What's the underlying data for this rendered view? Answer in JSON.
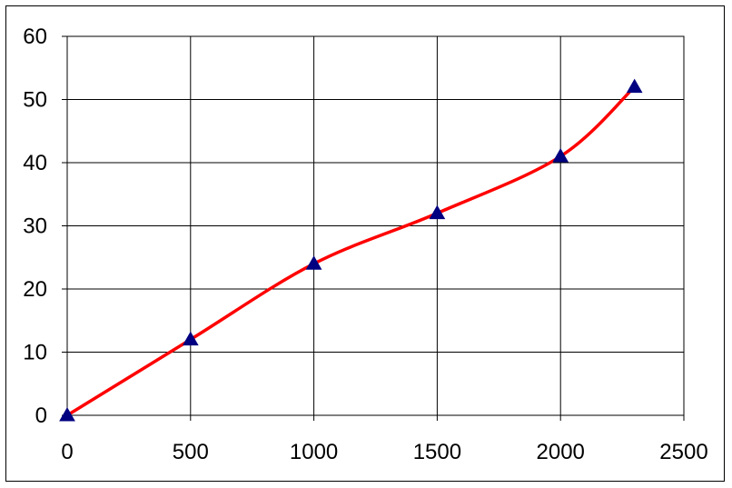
{
  "chart_data": {
    "type": "line",
    "title": "",
    "xlabel": "",
    "ylabel": "",
    "xlim": [
      0,
      2500
    ],
    "ylim": [
      0,
      60
    ],
    "x_ticks": [
      0,
      500,
      1000,
      1500,
      2000,
      2500
    ],
    "y_ticks": [
      0,
      10,
      20,
      30,
      40,
      50,
      60
    ],
    "grid": true,
    "legend": "none",
    "series": [
      {
        "line_color": "#ff0000",
        "marker_color": "#000080",
        "marker": "triangle",
        "x": [
          0,
          500,
          1000,
          1500,
          2000,
          2300
        ],
        "y": [
          0,
          12,
          24,
          32,
          41,
          52
        ]
      }
    ]
  }
}
